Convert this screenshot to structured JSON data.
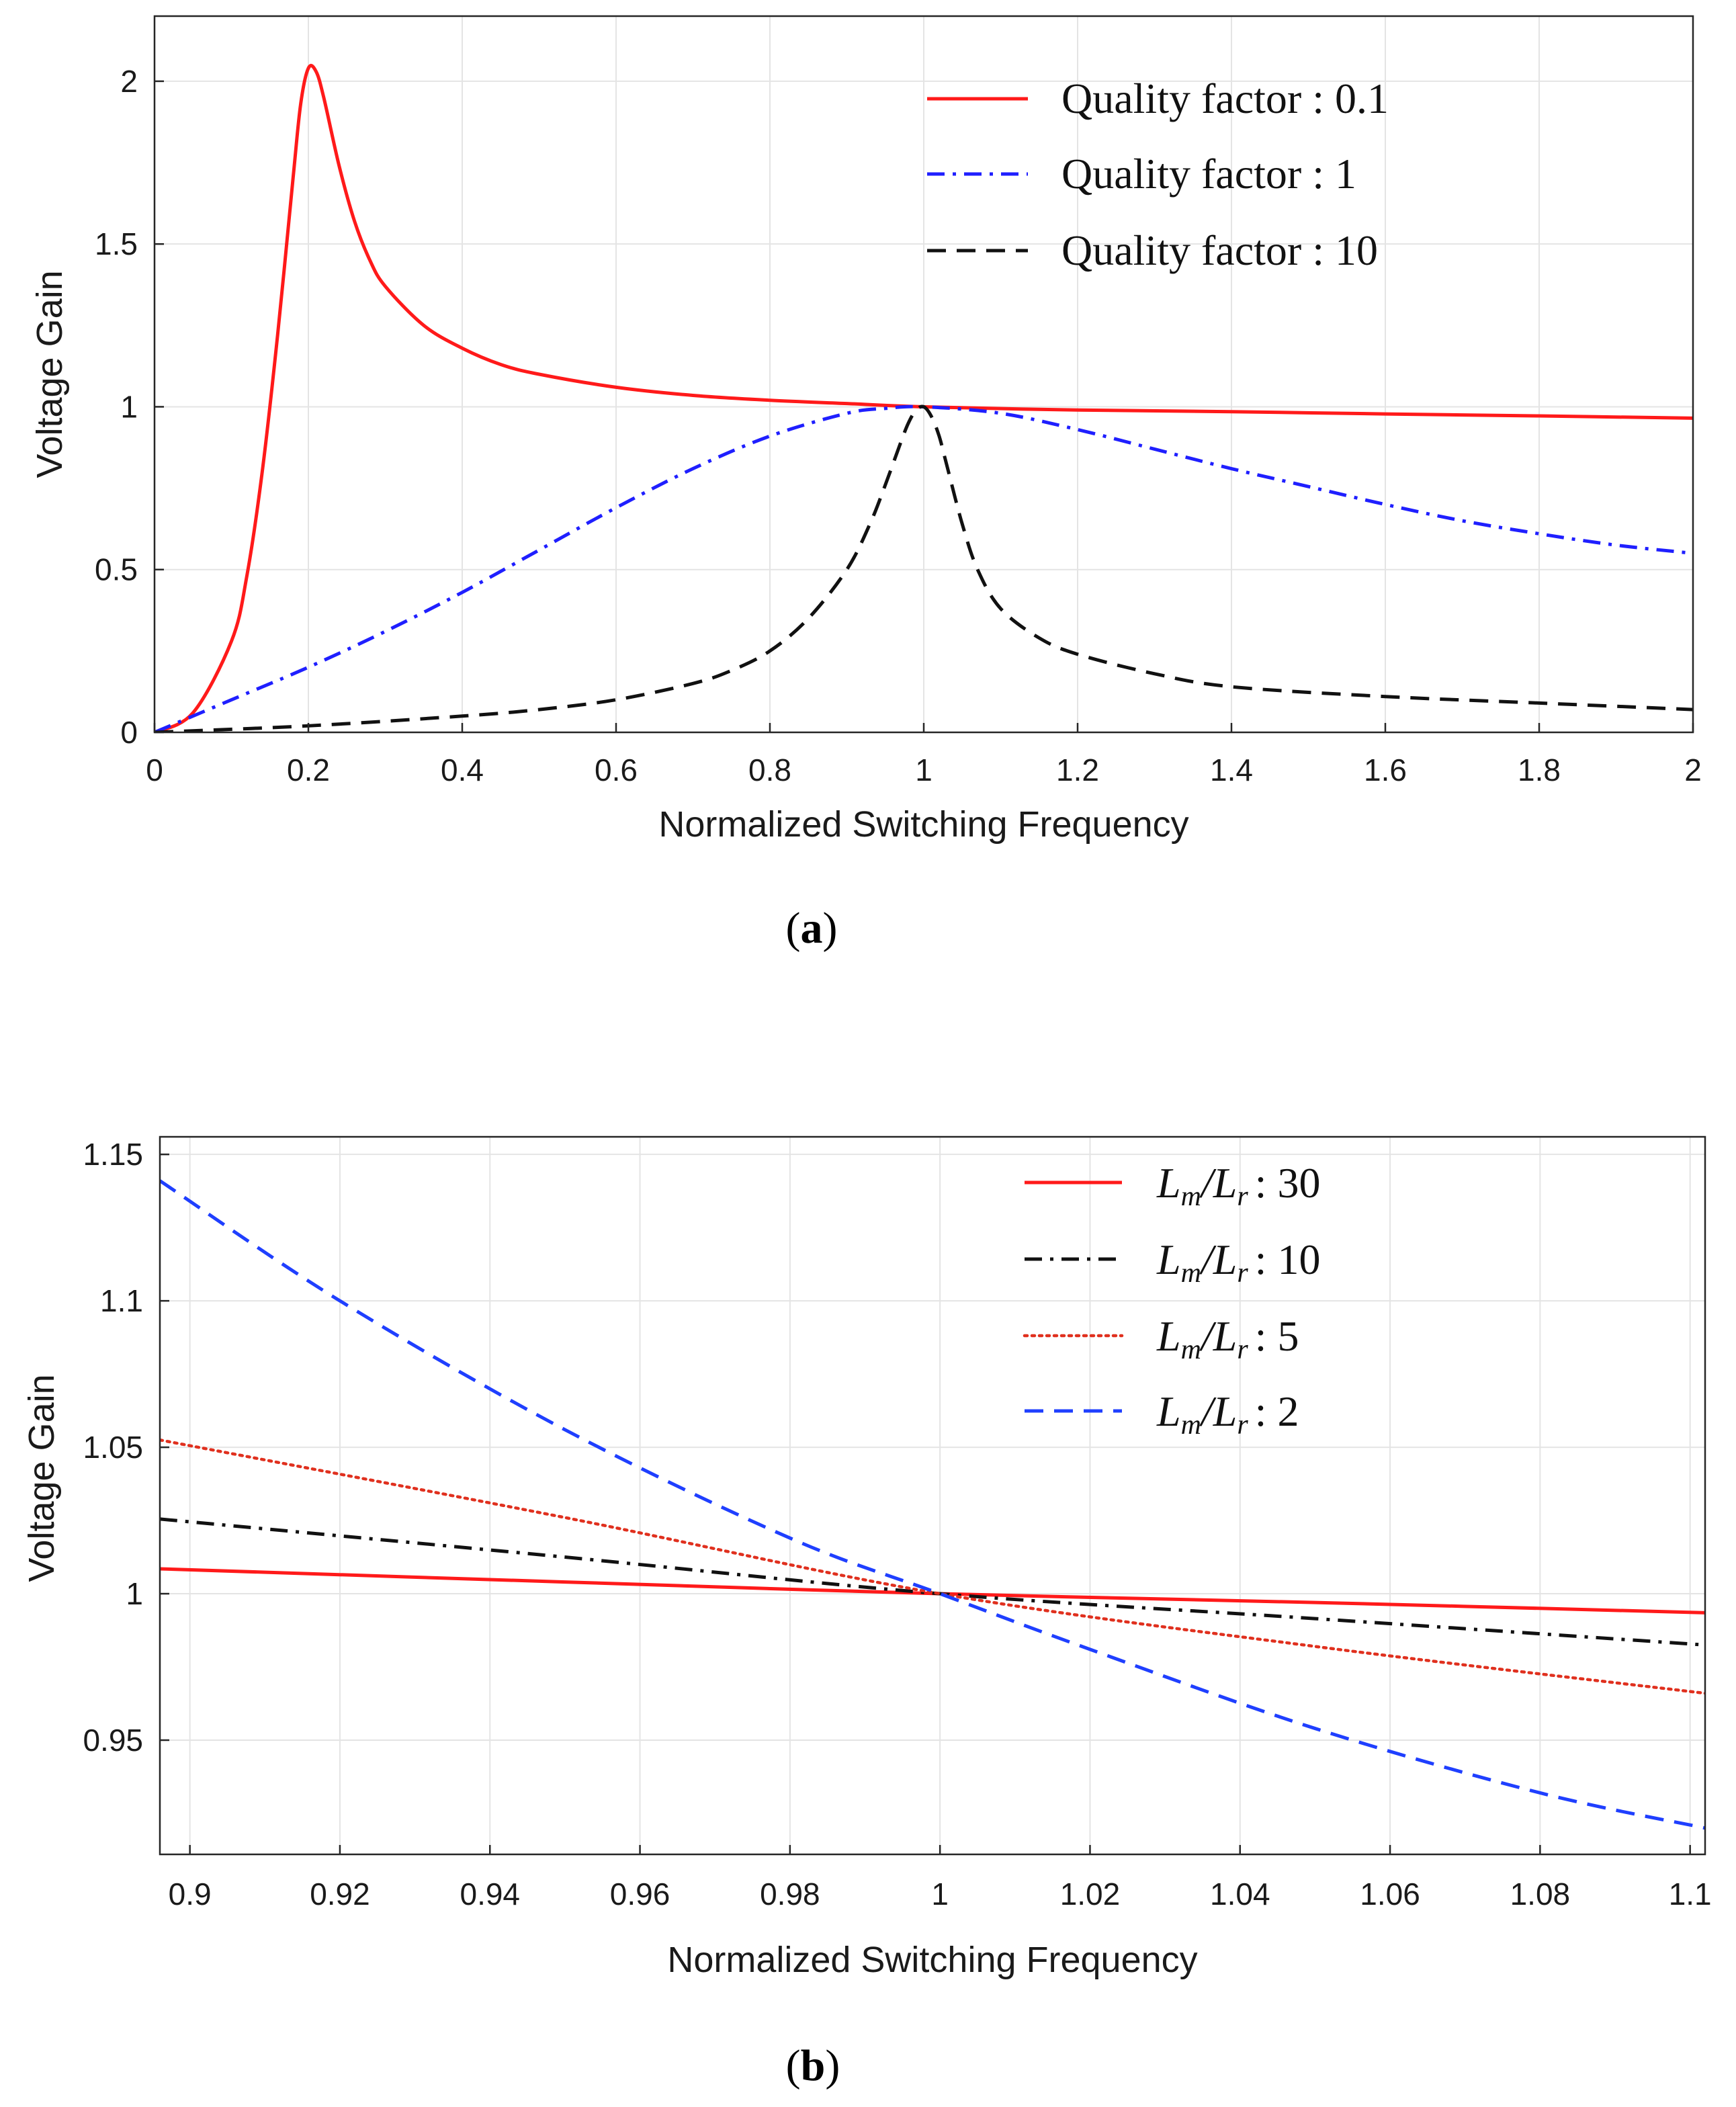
{
  "chart_data": [
    {
      "type": "line",
      "panel_label": "a",
      "xlabel": "Normalized Switching Frequency",
      "ylabel": "Voltage Gain",
      "xlim": [
        0,
        2
      ],
      "ylim": [
        0,
        2.2
      ],
      "xticks": [
        0,
        0.2,
        0.4,
        0.6,
        0.8,
        1,
        1.2,
        1.4,
        1.6,
        1.8,
        2
      ],
      "xtick_labels": [
        "0",
        "0.2",
        "0.4",
        "0.6",
        "0.8",
        "1",
        "1.2",
        "1.4",
        "1.6",
        "1.8",
        "2"
      ],
      "yticks": [
        0,
        0.5,
        1,
        1.5,
        2
      ],
      "ytick_labels": [
        "0",
        "0.5",
        "1",
        "1.5",
        "2"
      ],
      "grid": true,
      "legend_position": "top-right",
      "series": [
        {
          "name": "Quality factor : 0.1",
          "legend_prefix": "Quality factor",
          "legend_value": ": 0.1",
          "color": "#ff1a1a",
          "style": "solid",
          "x": [
            0,
            0.05,
            0.1,
            0.12,
            0.14,
            0.16,
            0.18,
            0.19,
            0.2,
            0.21,
            0.22,
            0.24,
            0.26,
            0.28,
            0.3,
            0.35,
            0.4,
            0.45,
            0.5,
            0.6,
            0.7,
            0.8,
            0.9,
            1.0,
            1.2,
            1.4,
            1.6,
            1.8,
            2.0
          ],
          "values": [
            0,
            0.06,
            0.28,
            0.48,
            0.8,
            1.22,
            1.7,
            1.93,
            2.04,
            2.03,
            1.95,
            1.74,
            1.57,
            1.45,
            1.37,
            1.25,
            1.18,
            1.13,
            1.1,
            1.06,
            1.035,
            1.02,
            1.01,
            1.0,
            0.99,
            0.985,
            0.978,
            0.972,
            0.965
          ]
        },
        {
          "name": "Quality factor : 1",
          "legend_prefix": "Quality factor",
          "legend_value": ": 1",
          "color": "#1f1fff",
          "style": "dashdot",
          "x": [
            0,
            0.1,
            0.2,
            0.3,
            0.4,
            0.5,
            0.6,
            0.7,
            0.8,
            0.9,
            0.95,
            1.0,
            1.1,
            1.2,
            1.3,
            1.4,
            1.5,
            1.6,
            1.7,
            1.8,
            1.9,
            2.0
          ],
          "values": [
            0,
            0.1,
            0.2,
            0.31,
            0.43,
            0.56,
            0.69,
            0.81,
            0.91,
            0.98,
            0.995,
            1.0,
            0.98,
            0.93,
            0.87,
            0.81,
            0.755,
            0.7,
            0.65,
            0.61,
            0.575,
            0.55
          ]
        },
        {
          "name": "Quality factor : 10",
          "legend_prefix": "Quality factor",
          "legend_value": ": 10",
          "color": "#111111",
          "style": "dashed",
          "x": [
            0,
            0.2,
            0.4,
            0.5,
            0.6,
            0.7,
            0.75,
            0.8,
            0.85,
            0.9,
            0.93,
            0.95,
            0.97,
            0.98,
            0.99,
            1.0,
            1.01,
            1.02,
            1.03,
            1.05,
            1.07,
            1.1,
            1.15,
            1.2,
            1.3,
            1.4,
            1.6,
            1.8,
            2.0
          ],
          "values": [
            0,
            0.02,
            0.05,
            0.07,
            0.1,
            0.15,
            0.19,
            0.25,
            0.35,
            0.5,
            0.64,
            0.76,
            0.89,
            0.95,
            0.99,
            1.0,
            0.97,
            0.91,
            0.82,
            0.64,
            0.5,
            0.38,
            0.29,
            0.24,
            0.18,
            0.14,
            0.11,
            0.09,
            0.07
          ]
        }
      ]
    },
    {
      "type": "line",
      "panel_label": "b",
      "xlabel": "Normalized Switching Frequency",
      "ylabel": "Voltage Gain",
      "xlim": [
        0.896,
        1.102
      ],
      "ylim": [
        0.911,
        1.156
      ],
      "xticks": [
        0.9,
        0.92,
        0.94,
        0.96,
        0.98,
        1,
        1.02,
        1.04,
        1.06,
        1.08,
        1.1
      ],
      "xtick_labels": [
        "0.9",
        "0.92",
        "0.94",
        "0.96",
        "0.98",
        "1",
        "1.02",
        "1.04",
        "1.06",
        "1.08",
        "1.1"
      ],
      "yticks": [
        0.95,
        1,
        1.05,
        1.1,
        1.15
      ],
      "ytick_labels": [
        "0.95",
        "1",
        "1.05",
        "1.1",
        "1.15"
      ],
      "grid": true,
      "legend_position": "top-right",
      "series": [
        {
          "name": "Lm/Lr : 30",
          "legend_sub1": "m",
          "legend_sub2": "r",
          "legend_value": ": 30",
          "color": "#ff1a1a",
          "style": "solid",
          "x": [
            0.896,
            0.95,
            1.0,
            1.05,
            1.102
          ],
          "values": [
            1.0085,
            1.004,
            1.0,
            0.997,
            0.9935
          ]
        },
        {
          "name": "Lm/Lr : 10",
          "legend_sub1": "m",
          "legend_sub2": "r",
          "legend_value": ": 10",
          "color": "#111111",
          "style": "dashdot",
          "x": [
            0.896,
            0.95,
            1.0,
            1.05,
            1.102
          ],
          "values": [
            1.0255,
            1.0125,
            1.0,
            0.9915,
            0.9825
          ]
        },
        {
          "name": "Lm/Lr : 5",
          "legend_sub1": "m",
          "legend_sub2": "r",
          "legend_value": ": 5",
          "color": "#e0301e",
          "style": "dotted",
          "x": [
            0.896,
            0.95,
            1.0,
            1.05,
            1.102
          ],
          "values": [
            1.0525,
            1.026,
            1.0,
            0.982,
            0.966
          ]
        },
        {
          "name": "Lm/Lr : 2",
          "legend_sub1": "m",
          "legend_sub2": "r",
          "legend_value": ": 2",
          "color": "#1f3fff",
          "style": "dashed",
          "x": [
            0.896,
            0.92,
            0.95,
            0.98,
            1.0,
            1.02,
            1.05,
            1.08,
            1.102
          ],
          "values": [
            1.141,
            1.1,
            1.056,
            1.019,
            1.0,
            0.981,
            0.954,
            0.932,
            0.92
          ]
        }
      ]
    }
  ]
}
